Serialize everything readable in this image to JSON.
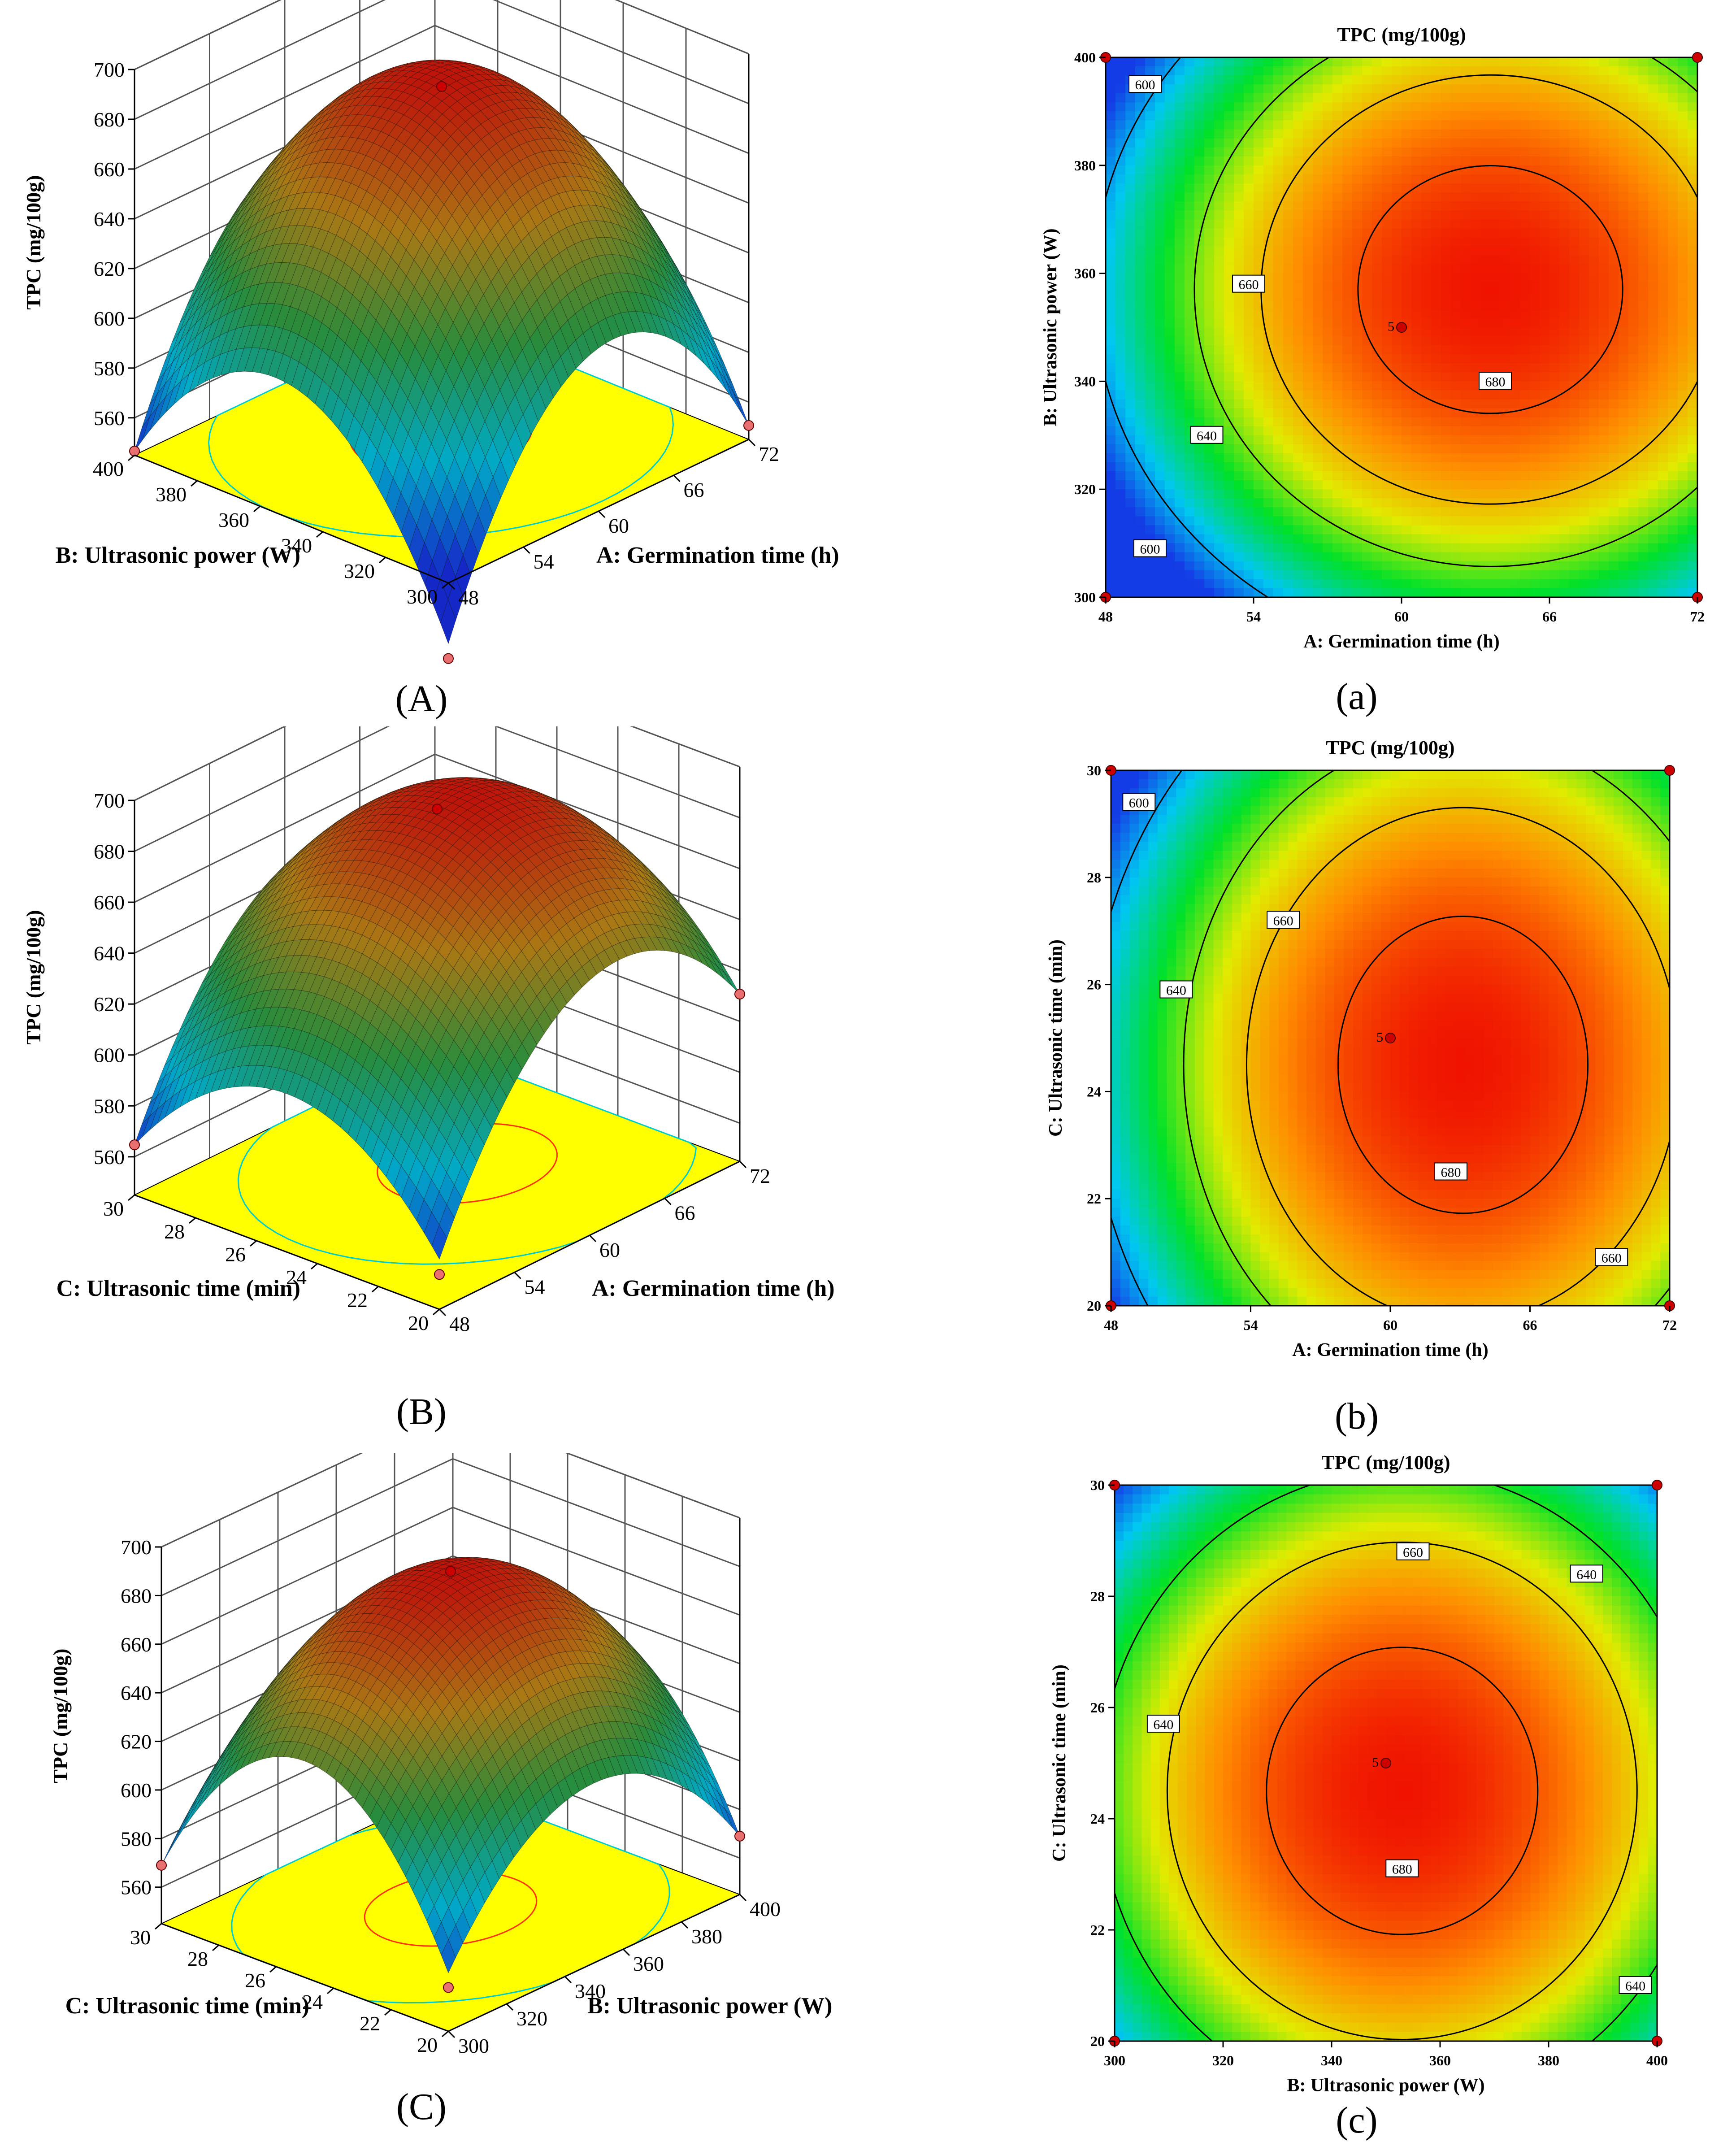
{
  "panel_labels": {
    "A": "(A)",
    "B": "(B)",
    "C": "(C)",
    "a": "(a)",
    "b": "(b)",
    "c": "(c)"
  },
  "colors": {
    "floor": "#ffff00",
    "design_point": "#cc0000",
    "contour_line": "#000000",
    "floor_contour_high": "#ff3300",
    "floor_contour_low": "#00cccc"
  },
  "chart_data": [
    {
      "id": "A",
      "type": "surface3d",
      "zlabel": "TPC (mg/100g)",
      "xlabel": "A: Germination time (h)",
      "ylabel": "B: Ultrasonic power (W)",
      "x_ticks": [
        "48",
        "54",
        "60",
        "66",
        "72"
      ],
      "y_ticks": [
        "300",
        "320",
        "340",
        "360",
        "380",
        "400"
      ],
      "z_ticks": [
        "560",
        "580",
        "600",
        "620",
        "640",
        "660",
        "680",
        "700"
      ],
      "xlim": [
        48,
        72
      ],
      "ylim": [
        300,
        400
      ],
      "zlim": [
        545,
        700
      ],
      "peak": 690
    },
    {
      "id": "B",
      "type": "surface3d",
      "zlabel": "TPC (mg/100g)",
      "xlabel": "A: Germination time (h)",
      "ylabel": "C: Ultrasonic time (min)",
      "x_ticks": [
        "48",
        "54",
        "60",
        "66",
        "72"
      ],
      "y_ticks": [
        "20",
        "22",
        "24",
        "26",
        "28",
        "30"
      ],
      "z_ticks": [
        "560",
        "580",
        "600",
        "620",
        "640",
        "660",
        "680",
        "700"
      ],
      "xlim": [
        48,
        72
      ],
      "ylim": [
        20,
        30
      ],
      "zlim": [
        545,
        700
      ],
      "peak": 690
    },
    {
      "id": "C",
      "type": "surface3d",
      "zlabel": "TPC (mg/100g)",
      "xlabel": "B: Ultrasonic power (W)",
      "ylabel": "C: Ultrasonic time (min)",
      "x_ticks": [
        "300",
        "320",
        "340",
        "360",
        "380",
        "400"
      ],
      "y_ticks": [
        "20",
        "22",
        "24",
        "26",
        "28",
        "30"
      ],
      "z_ticks": [
        "560",
        "580",
        "600",
        "620",
        "640",
        "660",
        "680",
        "700"
      ],
      "xlim": [
        300,
        400
      ],
      "ylim": [
        20,
        30
      ],
      "zlim": [
        545,
        700
      ],
      "peak": 684
    },
    {
      "id": "a",
      "type": "contour",
      "title": "TPC (mg/100g)",
      "xlabel": "A: Germination time (h)",
      "ylabel": "B: Ultrasonic power (W)",
      "x_ticks": [
        "48",
        "54",
        "60",
        "66",
        "72"
      ],
      "y_ticks": [
        "300",
        "320",
        "340",
        "360",
        "380",
        "400"
      ],
      "xlim": [
        48,
        72
      ],
      "ylim": [
        300,
        400
      ],
      "center_point": {
        "x": 60,
        "y": 350,
        "label": "5"
      },
      "contour_labels": [
        {
          "value": "600",
          "x": 49.6,
          "y": 395
        },
        {
          "value": "600",
          "x": 49.8,
          "y": 309
        },
        {
          "value": "640",
          "x": 52.1,
          "y": 330
        },
        {
          "value": "660",
          "x": 53.8,
          "y": 358
        },
        {
          "value": "680",
          "x": 63.8,
          "y": 340
        }
      ]
    },
    {
      "id": "b",
      "type": "contour",
      "title": "TPC (mg/100g)",
      "xlabel": "A: Germination time (h)",
      "ylabel": "C: Ultrasonic time (min)",
      "x_ticks": [
        "48",
        "54",
        "60",
        "66",
        "72"
      ],
      "y_ticks": [
        "20",
        "22",
        "24",
        "26",
        "28",
        "30"
      ],
      "xlim": [
        48,
        72
      ],
      "ylim": [
        20,
        30
      ],
      "center_point": {
        "x": 60,
        "y": 25,
        "label": "5"
      },
      "contour_labels": [
        {
          "value": "600",
          "x": 49.2,
          "y": 29.4
        },
        {
          "value": "640",
          "x": 50.8,
          "y": 25.9
        },
        {
          "value": "660",
          "x": 55.4,
          "y": 27.2
        },
        {
          "value": "680",
          "x": 62.6,
          "y": 22.5
        },
        {
          "value": "660",
          "x": 69.5,
          "y": 20.9
        }
      ]
    },
    {
      "id": "c",
      "type": "contour",
      "title": "TPC (mg/100g)",
      "xlabel": "B: Ultrasonic power (W)",
      "ylabel": "C: Ultrasonic time (min)",
      "x_ticks": [
        "300",
        "320",
        "340",
        "360",
        "380",
        "400"
      ],
      "y_ticks": [
        "20",
        "22",
        "24",
        "26",
        "28",
        "30"
      ],
      "xlim": [
        300,
        400
      ],
      "ylim": [
        20,
        30
      ],
      "center_point": {
        "x": 350,
        "y": 25,
        "label": "5"
      },
      "contour_labels": [
        {
          "value": "660",
          "x": 355,
          "y": 28.8
        },
        {
          "value": "640",
          "x": 387,
          "y": 28.4
        },
        {
          "value": "640",
          "x": 309,
          "y": 25.7
        },
        {
          "value": "680",
          "x": 353,
          "y": 23.1
        },
        {
          "value": "640",
          "x": 396,
          "y": 21.0
        }
      ]
    }
  ]
}
